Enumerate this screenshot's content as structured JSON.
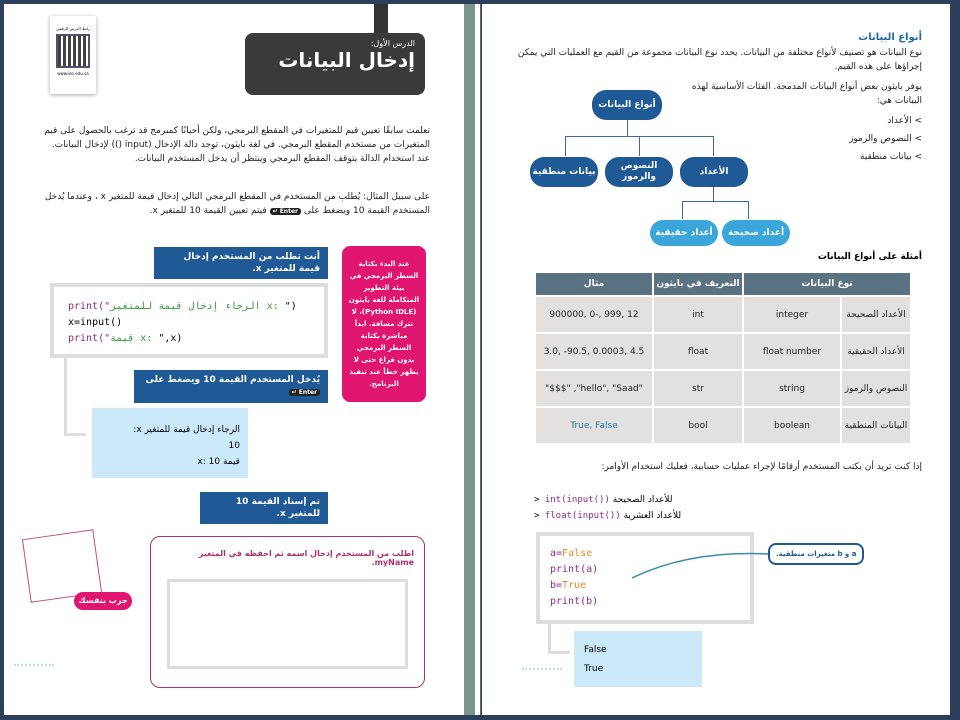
{
  "left": {
    "qr_caption": "رابط الدرس الرقمي",
    "qr_url": "www.ien.edu.sa",
    "lesson_label": "الدرس الأول:",
    "lesson_title": "إدخال البيانات",
    "para1": "تعلمت سابقًا تعيين قيم للمتغيرات في المقطع البرمجي، ولكن أحيانًا كمبرمج قد ترغب بالحصول على قيم المتغيرات من مستخدم المقطع البرمجي. في لغة بايثون، توجد دالة الإدخال (input ()) لإدخال البيانات. عند استخدام الدالة يتوقف المقطع البرمجي وينتظر أن يدخل المستخدم البيانات.",
    "para2": "على سبيل المثال: يُطلب من المستخدم في المقطع البرمجي التالي إدخال قيمة للمتغير x ، وعندما يُدخل المستخدم القيمة 10 ويضغط على",
    "para2_key": "Enter ↵",
    "para2_end": "فيتم تعيين القيمة 10 للمتغير x.",
    "callout1": "أنت تطلب من المستخدم إدخال قيمة للمتغير x.",
    "code": [
      {
        "fn": "print(\"",
        "str": "الرجاء إدخال قيمة للمتغير x: ",
        "end": "\")"
      },
      {
        "fn": "x=input()",
        "str": "",
        "end": ""
      },
      {
        "fn": "print(\"",
        "str": "قيمة x: ",
        "end": "\",x)"
      }
    ],
    "callout2": "يُدخل المستخدم القيمة 10 ويضغط على",
    "callout2_key": "Enter ↵",
    "output": [
      "الرجاء إدخال قيمة للمتغير x:",
      "10",
      "قيمة x: 10"
    ],
    "callout3": "تم إسناد القيمة 10 للمتغير x.",
    "tip": "عند البدء بكتابة السطر البرمجي في بيئة التطوير المتكاملة للغة بايثون (Python IDLE)، لا تترك مسافة. ابدأ مباشرة بكتابة السطر البرمجي بدون فراغ حتى لا يظهر خطأ عند تنفيذ البرنامج.",
    "try_label": "جرب بنفسك",
    "exercise": "اطلب من المستخدم إدخال اسمه ثم احفظه في المتغير myName."
  },
  "right": {
    "heading": "أنواع البيانات",
    "para1": "نوع البيانات هو تصنيف لأنواع مختلفة من البيانات. يحدد نوع البيانات مجموعة من القيم مع العمليات التي يمكن إجراؤها على هذه القيم.",
    "para2": "يوفر بايثون بعض أنواع البيانات المدمجة. الفئات الأساسية لهذه البيانات هي:",
    "bullets": [
      "> الأعداد",
      "> النصوص والرموز",
      "> بيانات منطقية"
    ],
    "tree": {
      "root": "أنواع البيانات",
      "children": [
        "الأعداد",
        "النصوص والرموز",
        "بيانات منطقية"
      ],
      "sub": [
        "أعداد صحيحة",
        "أعداد حقيقية"
      ]
    },
    "table_title": "أمثلة على أنواع البيانات",
    "table": {
      "headers": [
        "نوع البيانات",
        "التعريف في بايثون",
        "مثال"
      ],
      "rows": [
        [
          "الأعداد الصحيحة",
          "integer",
          "int",
          "900000, 0-, 999, 12"
        ],
        [
          "الأعداد الحقيقية",
          "float number",
          "float",
          "3.0, -90.5, 0.0003, 4.5"
        ],
        [
          "النصوص والرموز",
          "string",
          "str",
          "\"$$$\" ,\"hello\", \"Saad\""
        ],
        [
          "البيانات المنطقية",
          "boolean",
          "bool",
          "True, False"
        ]
      ]
    },
    "para3": "إذا كنت تريد أن يكتب المستخدم أرقامًا لإجراء عمليات حسابية، فعليك استخدام الأوامر:",
    "cmds": [
      {
        "code": "int(input())",
        "label": "للأعداد الصحيحة"
      },
      {
        "code": "float(input())",
        "label": "للأعداد العشرية"
      }
    ],
    "code": [
      [
        "a=",
        "False"
      ],
      [
        "print(a)",
        ""
      ],
      [
        "b=",
        "True"
      ],
      [
        "print(b)",
        ""
      ]
    ],
    "callout": "a و b متغيرات منطقية.",
    "output": [
      "False",
      "True"
    ]
  },
  "colors": {
    "navy": "#2c3f5c",
    "blue": "#1f5a96",
    "light_blue": "#3aa6da",
    "pink": "#e0156f",
    "output_bg": "#cbe9f8"
  }
}
